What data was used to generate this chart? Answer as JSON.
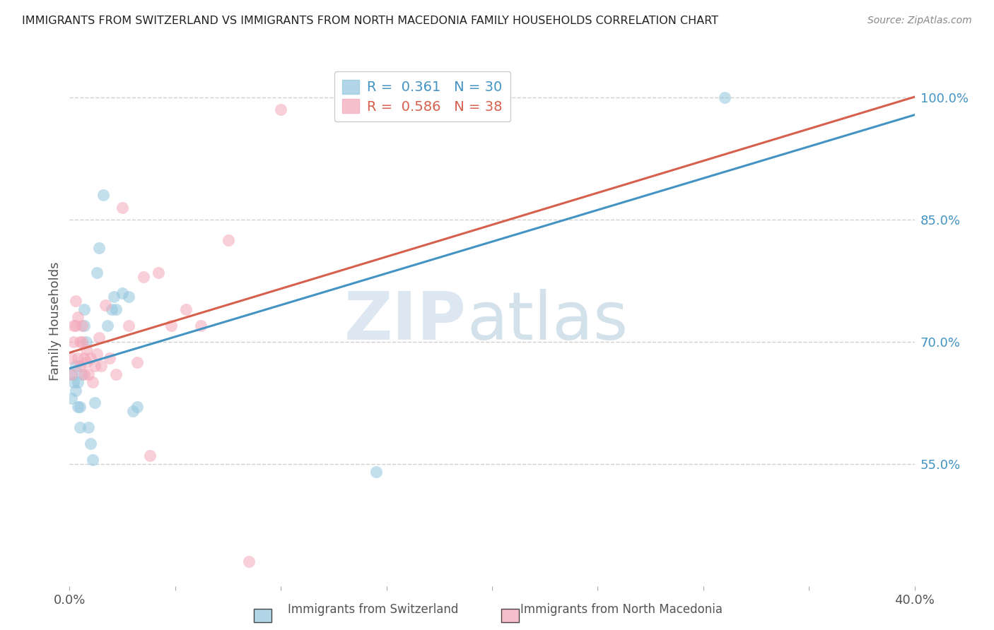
{
  "title": "IMMIGRANTS FROM SWITZERLAND VS IMMIGRANTS FROM NORTH MACEDONIA FAMILY HOUSEHOLDS CORRELATION CHART",
  "source": "Source: ZipAtlas.com",
  "ylabel": "Family Households",
  "xlim": [
    0.0,
    0.4
  ],
  "ylim": [
    0.4,
    1.05
  ],
  "x_ticks": [
    0.0,
    0.05,
    0.1,
    0.15,
    0.2,
    0.25,
    0.3,
    0.35,
    0.4
  ],
  "x_tick_labels": [
    "0.0%",
    "",
    "",
    "",
    "",
    "",
    "",
    "",
    "40.0%"
  ],
  "y_ticks_right": [
    0.55,
    0.7,
    0.85,
    1.0
  ],
  "y_tick_labels_right": [
    "55.0%",
    "70.0%",
    "85.0%",
    "100.0%"
  ],
  "R_blue": 0.361,
  "N_blue": 30,
  "R_pink": 0.586,
  "N_pink": 38,
  "color_blue": "#92c5de",
  "color_pink": "#f4a6b8",
  "line_color_blue": "#4393c3",
  "line_color_pink": "#d6604d",
  "swiss_x": [
    0.001,
    0.001,
    0.002,
    0.003,
    0.003,
    0.004,
    0.004,
    0.005,
    0.005,
    0.006,
    0.007,
    0.007,
    0.008,
    0.009,
    0.01,
    0.011,
    0.012,
    0.013,
    0.014,
    0.016,
    0.018,
    0.02,
    0.021,
    0.022,
    0.025,
    0.028,
    0.03,
    0.032,
    0.145,
    0.31
  ],
  "swiss_y": [
    0.66,
    0.63,
    0.65,
    0.67,
    0.64,
    0.62,
    0.65,
    0.62,
    0.595,
    0.66,
    0.72,
    0.74,
    0.7,
    0.595,
    0.575,
    0.555,
    0.625,
    0.785,
    0.815,
    0.88,
    0.72,
    0.74,
    0.755,
    0.74,
    0.76,
    0.755,
    0.615,
    0.62,
    0.54,
    1.0
  ],
  "mac_x": [
    0.001,
    0.001,
    0.002,
    0.002,
    0.003,
    0.003,
    0.004,
    0.004,
    0.005,
    0.005,
    0.006,
    0.006,
    0.007,
    0.007,
    0.008,
    0.008,
    0.009,
    0.01,
    0.011,
    0.012,
    0.013,
    0.014,
    0.015,
    0.017,
    0.019,
    0.022,
    0.025,
    0.028,
    0.032,
    0.035,
    0.038,
    0.042,
    0.048,
    0.055,
    0.062,
    0.075,
    0.085,
    0.1
  ],
  "mac_y": [
    0.66,
    0.68,
    0.72,
    0.7,
    0.75,
    0.72,
    0.73,
    0.68,
    0.7,
    0.67,
    0.72,
    0.7,
    0.68,
    0.66,
    0.675,
    0.69,
    0.66,
    0.68,
    0.65,
    0.67,
    0.685,
    0.705,
    0.67,
    0.745,
    0.68,
    0.66,
    0.865,
    0.72,
    0.675,
    0.78,
    0.56,
    0.785,
    0.72,
    0.74,
    0.72,
    0.825,
    0.43,
    0.985
  ],
  "watermark_zip": "ZIP",
  "watermark_atlas": "atlas",
  "background_color": "#ffffff",
  "grid_color": "#d0d0d0"
}
